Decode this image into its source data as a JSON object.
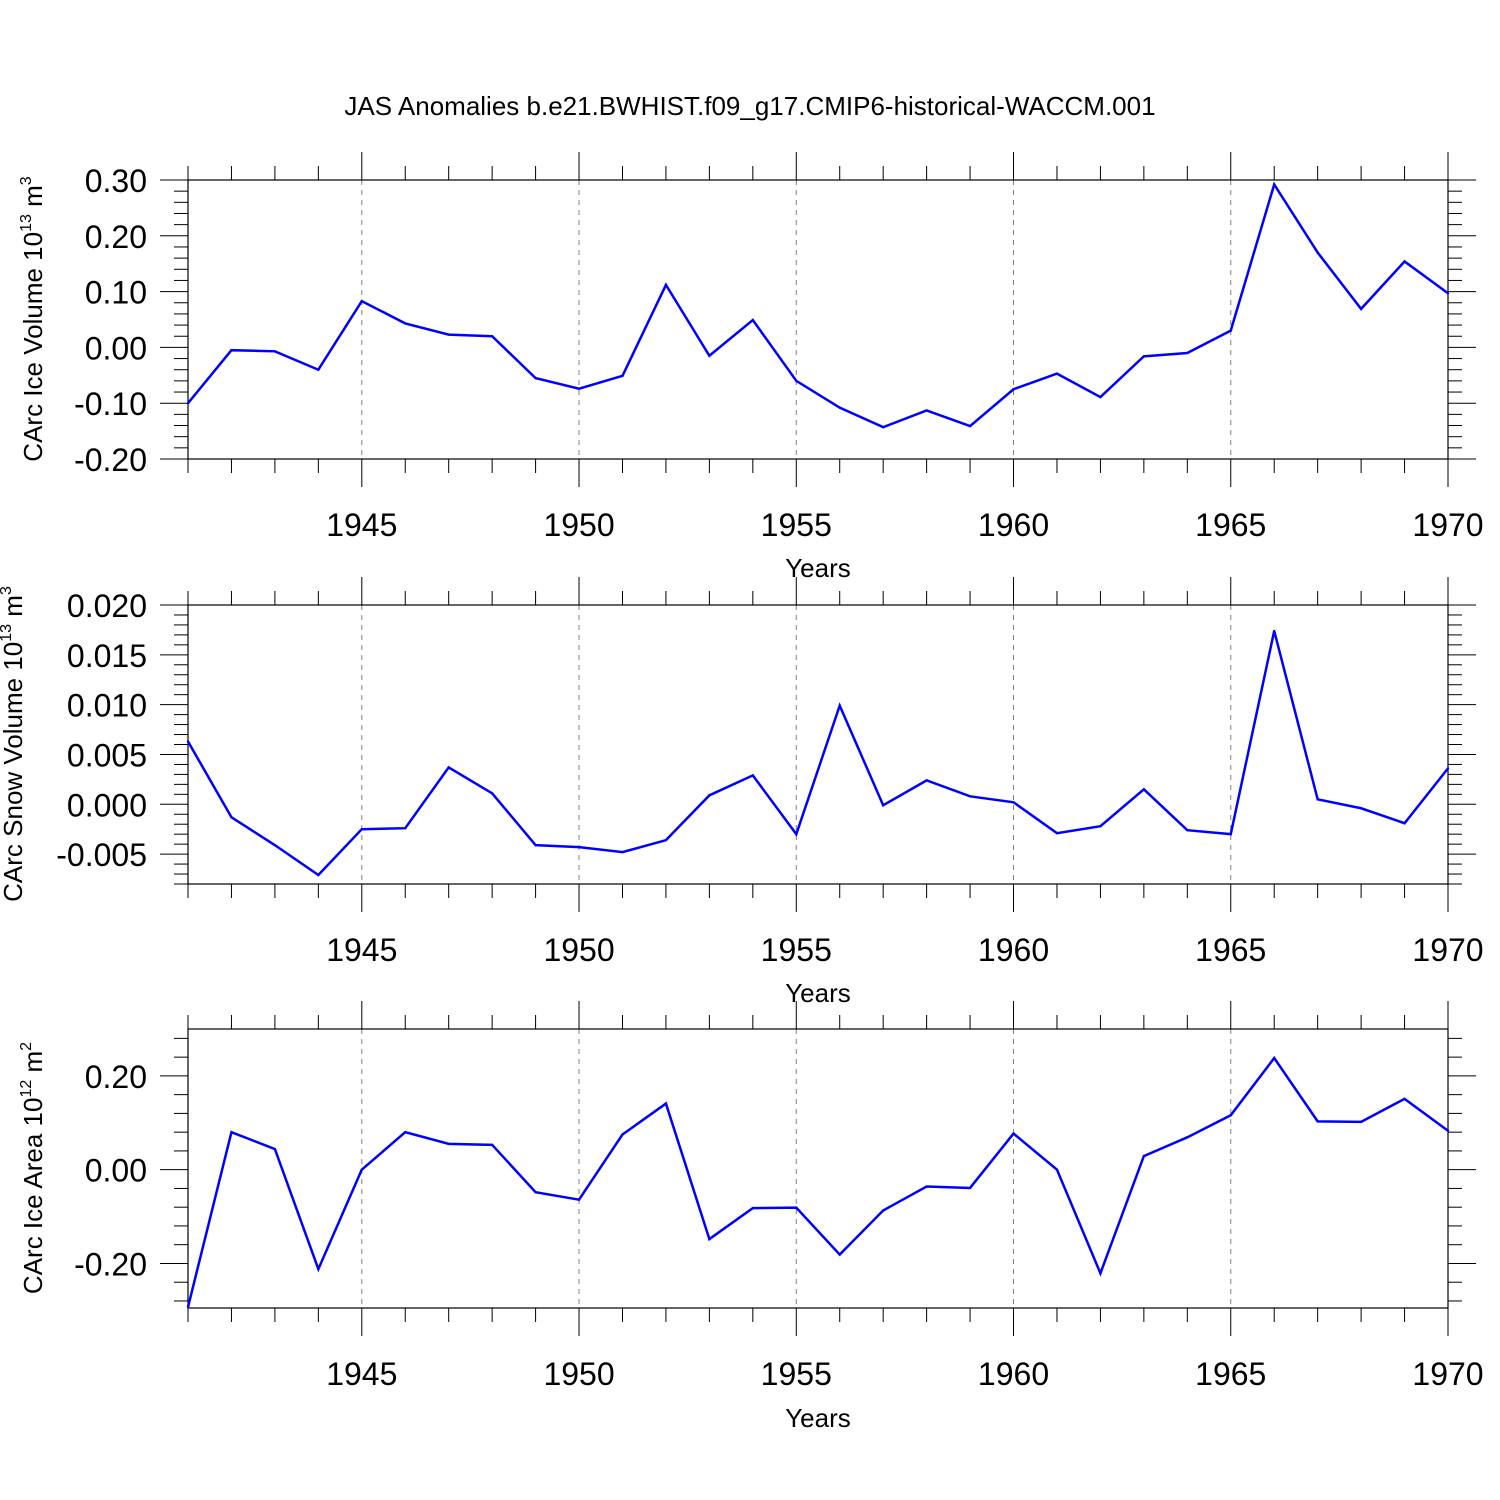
{
  "title": "JAS Anomalies b.e21.BWHIST.f09_g17.CMIP6-historical-WACCM.001",
  "colors": {
    "line": "#0000ff",
    "axis": "#000000",
    "grid": "#808080"
  },
  "chart_data": [
    {
      "type": "line",
      "ylabel": "CArc Ice Volume 10",
      "ylabel_exp": "13",
      "ylabel_unit": " m",
      "ylabel_unit_exp": "3",
      "xlabel": "Years",
      "xlim": [
        1941,
        1970
      ],
      "ylim": [
        -0.2,
        0.3
      ],
      "yticks": [
        -0.2,
        -0.1,
        0.0,
        0.1,
        0.2,
        0.3
      ],
      "ytick_labels": [
        "-0.20",
        "-0.10",
        "0.00",
        "0.10",
        "0.20",
        "0.30"
      ],
      "xticks": [
        1945,
        1950,
        1955,
        1960,
        1965,
        1970
      ],
      "xtick_labels": [
        "1945",
        "1950",
        "1955",
        "1960",
        "1965",
        "1970"
      ],
      "x": [
        1941,
        1942,
        1943,
        1944,
        1945,
        1946,
        1947,
        1948,
        1949,
        1950,
        1951,
        1952,
        1953,
        1954,
        1955,
        1956,
        1957,
        1958,
        1959,
        1960,
        1961,
        1962,
        1963,
        1964,
        1965,
        1966,
        1967,
        1968,
        1969,
        1970
      ],
      "values": [
        -0.1,
        -0.005,
        -0.007,
        -0.04,
        0.083,
        0.043,
        0.023,
        0.02,
        -0.055,
        -0.074,
        -0.051,
        0.112,
        -0.015,
        0.049,
        -0.06,
        -0.108,
        -0.143,
        -0.113,
        -0.141,
        -0.075,
        -0.047,
        -0.089,
        -0.016,
        -0.01,
        0.03,
        0.292,
        0.17,
        0.069,
        0.154,
        0.097
      ]
    },
    {
      "type": "line",
      "ylabel": "CArc Snow Volume 10",
      "ylabel_exp": "13",
      "ylabel_unit": " m",
      "ylabel_unit_exp": "3",
      "xlabel": "Years",
      "xlim": [
        1941,
        1970
      ],
      "ylim": [
        -0.008,
        0.02
      ],
      "yticks": [
        -0.005,
        0.0,
        0.005,
        0.01,
        0.015,
        0.02
      ],
      "ytick_labels": [
        "-0.005",
        "0.000",
        "0.005",
        "0.010",
        "0.015",
        "0.020"
      ],
      "xticks": [
        1945,
        1950,
        1955,
        1960,
        1965,
        1970
      ],
      "xtick_labels": [
        "1945",
        "1950",
        "1955",
        "1960",
        "1965",
        "1970"
      ],
      "x": [
        1941,
        1942,
        1943,
        1944,
        1945,
        1946,
        1947,
        1948,
        1949,
        1950,
        1951,
        1952,
        1953,
        1954,
        1955,
        1956,
        1957,
        1958,
        1959,
        1960,
        1961,
        1962,
        1963,
        1964,
        1965,
        1966,
        1967,
        1968,
        1969,
        1970
      ],
      "values": [
        0.0063,
        -0.0013,
        -0.0041,
        -0.0071,
        -0.0025,
        -0.0024,
        0.0037,
        0.0011,
        -0.0041,
        -0.0043,
        -0.0048,
        -0.0036,
        0.0009,
        0.0029,
        -0.003,
        0.0099,
        -0.0001,
        0.0024,
        0.0008,
        0.0002,
        -0.0029,
        -0.0022,
        0.0015,
        -0.0026,
        -0.003,
        0.0174,
        0.0005,
        -0.0004,
        -0.0019,
        0.0036
      ]
    },
    {
      "type": "line",
      "ylabel": "CArc Ice Area 10",
      "ylabel_exp": "12",
      "ylabel_unit": " m",
      "ylabel_unit_exp": "2",
      "xlabel": "Years",
      "xlim": [
        1941,
        1970
      ],
      "ylim": [
        -0.295,
        0.3
      ],
      "yticks": [
        -0.2,
        0.0,
        0.2
      ],
      "ytick_labels": [
        "-0.20",
        "0.00",
        "0.20"
      ],
      "xticks": [
        1945,
        1950,
        1955,
        1960,
        1965,
        1970
      ],
      "xtick_labels": [
        "1945",
        "1950",
        "1955",
        "1960",
        "1965",
        "1970"
      ],
      "x": [
        1941,
        1942,
        1943,
        1944,
        1945,
        1946,
        1947,
        1948,
        1949,
        1950,
        1951,
        1952,
        1953,
        1954,
        1955,
        1956,
        1957,
        1958,
        1959,
        1960,
        1961,
        1962,
        1963,
        1964,
        1965,
        1966,
        1967,
        1968,
        1969,
        1970
      ],
      "values": [
        -0.293,
        0.08,
        0.044,
        -0.212,
        0.0,
        0.08,
        0.055,
        0.053,
        -0.048,
        -0.064,
        0.075,
        0.141,
        -0.148,
        -0.082,
        -0.081,
        -0.181,
        -0.087,
        -0.036,
        -0.039,
        0.077,
        0.0,
        -0.221,
        0.029,
        0.069,
        0.116,
        0.238,
        0.103,
        0.102,
        0.151,
        0.083
      ]
    }
  ]
}
